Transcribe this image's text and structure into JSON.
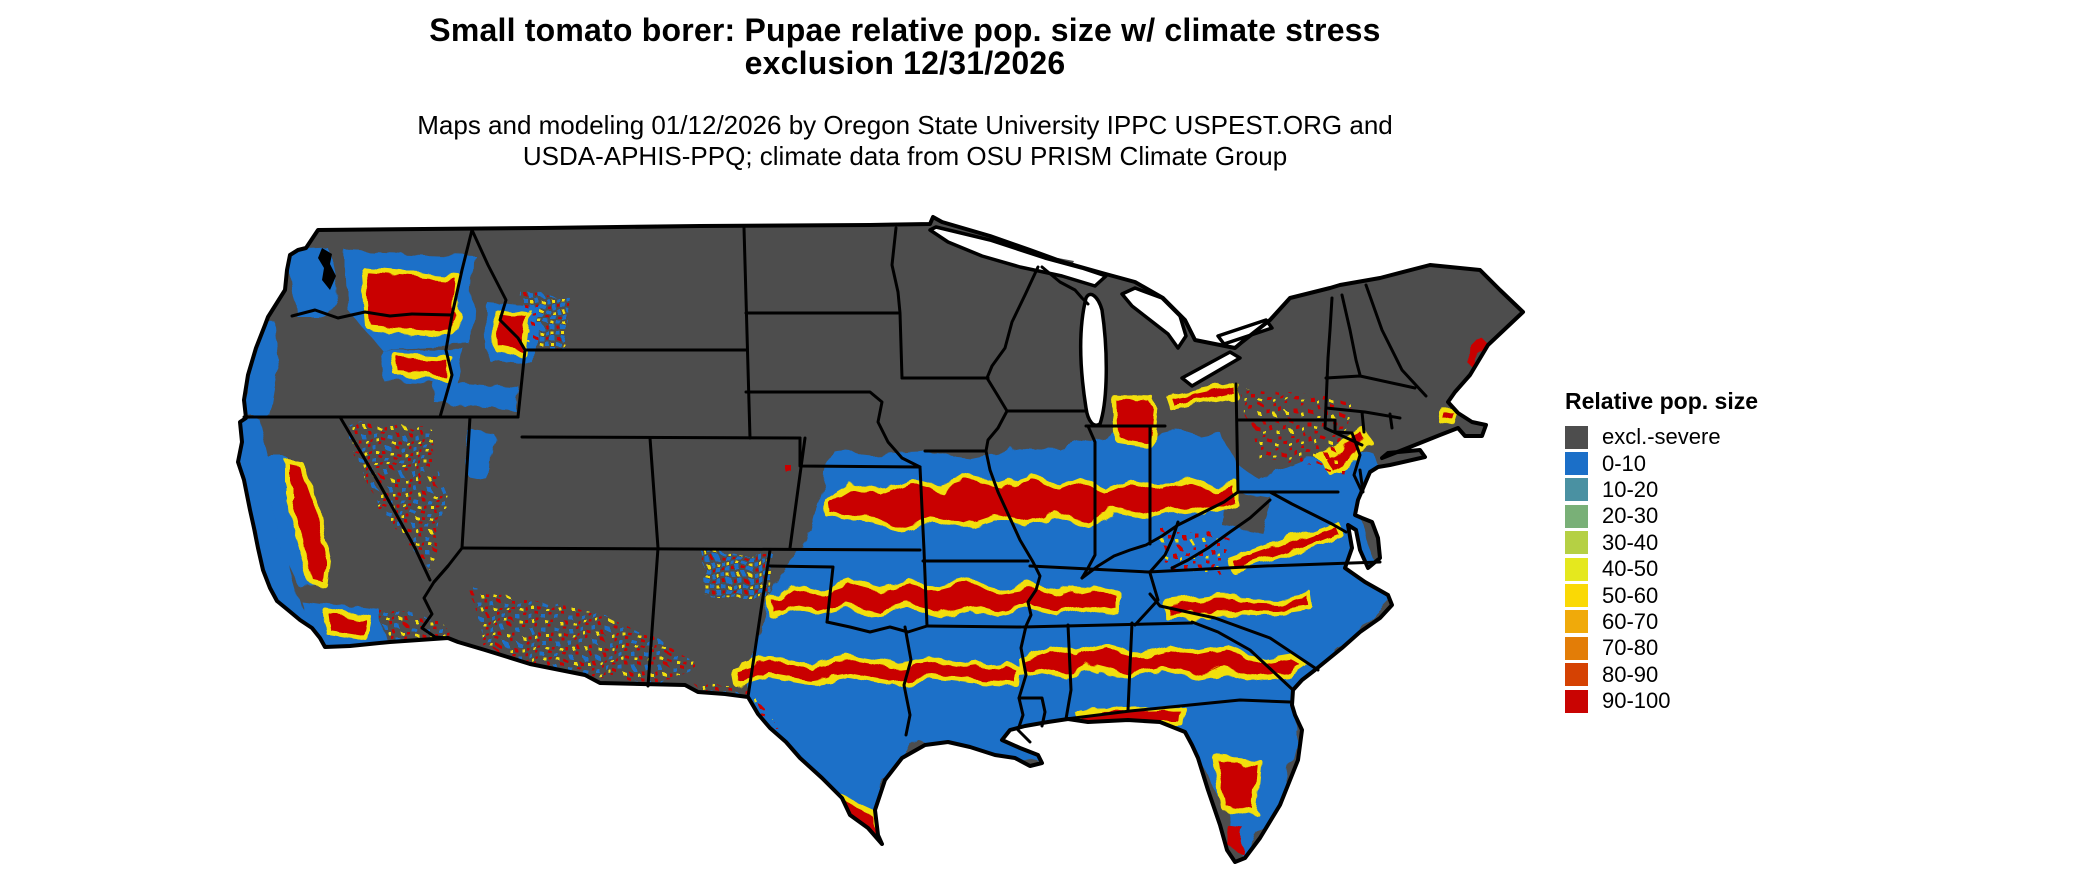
{
  "header": {
    "title_line1": "Small tomato borer: Pupae relative pop. size w/ climate stress",
    "title_line2": "exclusion 12/31/2026",
    "subtitle_line1": "Maps and modeling 01/12/2026 by Oregon State University IPPC USPEST.ORG and",
    "subtitle_line2": "USDA-APHIS-PPQ; climate data from OSU PRISM Climate Group"
  },
  "legend": {
    "title": "Relative pop. size",
    "items": [
      {
        "label": "excl.-severe",
        "color": "#4d4d4d"
      },
      {
        "label": "0-10",
        "color": "#1b6fc8"
      },
      {
        "label": "10-20",
        "color": "#4a91a2"
      },
      {
        "label": "20-30",
        "color": "#79b077"
      },
      {
        "label": "30-40",
        "color": "#b5d044"
      },
      {
        "label": "40-50",
        "color": "#e5e81e"
      },
      {
        "label": "50-60",
        "color": "#fad905"
      },
      {
        "label": "60-70",
        "color": "#f0aa0a"
      },
      {
        "label": "70-80",
        "color": "#e37d07"
      },
      {
        "label": "80-90",
        "color": "#d54203"
      },
      {
        "label": "90-100",
        "color": "#c90402"
      }
    ]
  },
  "map": {
    "land_excluded_color": "#4d4d4d",
    "suitable_low_color": "#1b6fc8",
    "band_high_color": "#c90402",
    "band_fringe_color": "#f2df0a",
    "border_color": "#000000",
    "water_color": "#ffffff"
  }
}
